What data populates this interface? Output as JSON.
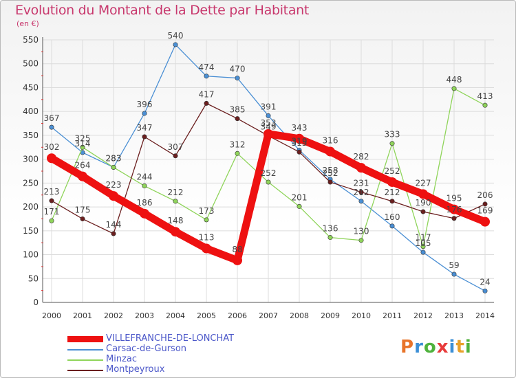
{
  "title": "Evolution du Montant de la Dette par Habitant",
  "unit": "(en €)",
  "brand": "Proxiti",
  "chart_data": {
    "type": "line",
    "title": "Evolution du Montant de la Dette par Habitant",
    "ylabel": "(en €)",
    "xlabel": "",
    "ylim": [
      0,
      550
    ],
    "yticks": [
      0,
      50,
      100,
      150,
      200,
      250,
      300,
      350,
      400,
      450,
      500,
      550
    ],
    "grid": true,
    "legend": "bottom-left",
    "x": [
      "2000",
      "2001",
      "2002",
      "2003",
      "2004",
      "2005",
      "2006",
      "2007",
      "2008",
      "2009",
      "2010",
      "2011",
      "2012",
      "2013",
      "2014"
    ],
    "series": [
      {
        "name": "VILLEFRANCHE-DE-LONCHAT",
        "color": "#ee1111",
        "emphasis": true,
        "values": [
          302,
          264,
          223,
          186,
          148,
          113,
          88,
          353,
          343,
          316,
          282,
          252,
          227,
          195,
          169
        ]
      },
      {
        "name": "Carsac-de-Gurson",
        "color": "#4a8fd4",
        "values": [
          367,
          314,
          283,
          396,
          540,
          474,
          470,
          391,
          319,
          258,
          212,
          160,
          105,
          59,
          24
        ]
      },
      {
        "name": "Minzac",
        "color": "#8fd45a",
        "values": [
          171,
          325,
          283,
          244,
          212,
          173,
          312,
          252,
          201,
          136,
          130,
          333,
          117,
          448,
          413
        ]
      },
      {
        "name": "Montpeyroux",
        "color": "#6b1f1f",
        "values": [
          213,
          175,
          144,
          347,
          307,
          417,
          385,
          349,
          315,
          252,
          231,
          212,
          190,
          176,
          206
        ]
      }
    ]
  }
}
